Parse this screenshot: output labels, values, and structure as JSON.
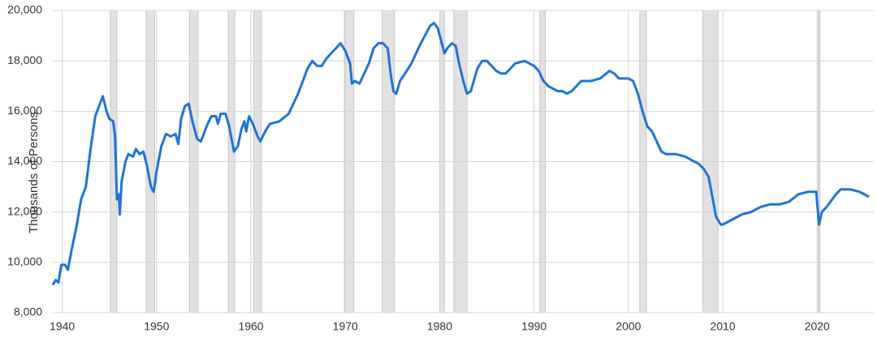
{
  "chart_data": {
    "type": "line",
    "y_label": "Thousands of Persons",
    "color": "#1f74d4",
    "recession_color": "#e1e1e1",
    "grid": true,
    "xlim": [
      1939,
      2026
    ],
    "ylim": [
      8000,
      20000
    ],
    "xticks": [
      1940,
      1950,
      1960,
      1970,
      1980,
      1990,
      2000,
      2010,
      2020
    ],
    "yticks": [
      {
        "value": 8000,
        "label": "8,000"
      },
      {
        "value": 10000,
        "label": "10,000"
      },
      {
        "value": 12000,
        "label": "12,000"
      },
      {
        "value": 14000,
        "label": "14,000"
      },
      {
        "value": 16000,
        "label": "16,000"
      },
      {
        "value": 18000,
        "label": "18,000"
      },
      {
        "value": 20000,
        "label": "20,000"
      }
    ],
    "recessions": [
      [
        1945.1,
        1945.8
      ],
      [
        1948.9,
        1949.8
      ],
      [
        1953.5,
        1954.4
      ],
      [
        1957.6,
        1958.3
      ],
      [
        1960.3,
        1961.1
      ],
      [
        1969.9,
        1970.9
      ],
      [
        1973.9,
        1975.2
      ],
      [
        1980.0,
        1980.5
      ],
      [
        1981.5,
        1982.9
      ],
      [
        1990.6,
        1991.2
      ],
      [
        2001.2,
        2001.9
      ],
      [
        2007.9,
        2009.5
      ],
      [
        2020.1,
        2020.3
      ]
    ],
    "x": [
      1939.0,
      1939.3,
      1939.6,
      1939.9,
      1940.3,
      1940.6,
      1941.0,
      1941.5,
      1942.0,
      1942.5,
      1943.0,
      1943.5,
      1944.0,
      1944.3,
      1944.7,
      1945.0,
      1945.4,
      1945.6,
      1945.8,
      1946.0,
      1946.1,
      1946.3,
      1946.7,
      1947.0,
      1947.5,
      1947.8,
      1948.2,
      1948.6,
      1949.0,
      1949.4,
      1949.7,
      1950.0,
      1950.5,
      1951.0,
      1951.5,
      1952.0,
      1952.3,
      1952.6,
      1953.0,
      1953.4,
      1953.8,
      1954.3,
      1954.7,
      1955.3,
      1955.8,
      1956.3,
      1956.5,
      1956.8,
      1957.3,
      1957.7,
      1958.2,
      1958.6,
      1959.0,
      1959.3,
      1959.5,
      1959.8,
      1960.2,
      1960.7,
      1961.0,
      1961.5,
      1962.0,
      1963.0,
      1964.0,
      1965.0,
      1966.0,
      1966.5,
      1967.0,
      1967.5,
      1968.0,
      1969.0,
      1969.5,
      1970.0,
      1970.5,
      1970.7,
      1971.0,
      1971.5,
      1972.0,
      1972.5,
      1973.0,
      1973.5,
      1974.0,
      1974.5,
      1974.8,
      1975.1,
      1975.4,
      1975.8,
      1976.5,
      1977.0,
      1978.0,
      1979.0,
      1979.4,
      1979.8,
      1980.3,
      1980.5,
      1980.8,
      1981.3,
      1981.7,
      1982.0,
      1982.5,
      1982.9,
      1983.3,
      1984.0,
      1984.5,
      1985.0,
      1985.5,
      1986.0,
      1986.5,
      1987.0,
      1987.5,
      1988.0,
      1989.0,
      1989.5,
      1990.0,
      1990.5,
      1991.0,
      1991.5,
      1992.0,
      1992.5,
      1993.0,
      1993.5,
      1994.0,
      1995.0,
      1996.0,
      1997.0,
      1998.0,
      1998.5,
      1999.0,
      2000.0,
      2000.5,
      2001.0,
      2001.5,
      2002.0,
      2002.5,
      2003.0,
      2003.5,
      2004.0,
      2005.0,
      2006.0,
      2007.0,
      2007.5,
      2008.0,
      2008.5,
      2009.0,
      2009.3,
      2009.8,
      2010.0,
      2011.0,
      2012.0,
      2013.0,
      2014.0,
      2015.0,
      2016.0,
      2017.0,
      2018.0,
      2019.0,
      2019.9,
      2020.2,
      2020.5,
      2021.0,
      2022.0,
      2022.5,
      2023.5,
      2024.5,
      2025.5
    ],
    "values": [
      9100,
      9300,
      9200,
      9900,
      9900,
      9700,
      10500,
      11400,
      12500,
      13000,
      14500,
      15800,
      16300,
      16600,
      16000,
      15700,
      15600,
      15000,
      12500,
      12700,
      11900,
      13200,
      14000,
      14300,
      14200,
      14500,
      14300,
      14400,
      13800,
      13000,
      12800,
      13600,
      14600,
      15100,
      15000,
      15100,
      14700,
      15700,
      16200,
      16300,
      15600,
      14900,
      14800,
      15400,
      15800,
      15800,
      15500,
      15900,
      15900,
      15400,
      14400,
      14600,
      15300,
      15600,
      15200,
      15800,
      15500,
      15000,
      14800,
      15200,
      15500,
      15600,
      15900,
      16700,
      17700,
      18000,
      17800,
      17800,
      18100,
      18500,
      18700,
      18400,
      17900,
      17100,
      17200,
      17100,
      17500,
      17900,
      18500,
      18700,
      18700,
      18500,
      17500,
      16800,
      16700,
      17200,
      17600,
      17900,
      18700,
      19400,
      19500,
      19300,
      18600,
      18300,
      18500,
      18700,
      18600,
      18000,
      17200,
      16700,
      16800,
      17700,
      18000,
      18000,
      17800,
      17600,
      17500,
      17500,
      17700,
      17900,
      18000,
      17900,
      17800,
      17600,
      17200,
      17000,
      16900,
      16800,
      16800,
      16700,
      16800,
      17200,
      17200,
      17300,
      17600,
      17500,
      17300,
      17300,
      17200,
      16700,
      16000,
      15400,
      15200,
      14800,
      14400,
      14300,
      14300,
      14200,
      14000,
      13900,
      13700,
      13400,
      12400,
      11800,
      11500,
      11500,
      11700,
      11900,
      12000,
      12200,
      12300,
      12300,
      12400,
      12700,
      12800,
      12800,
      11500,
      12000,
      12200,
      12700,
      12900,
      12900,
      12800,
      12600
    ]
  }
}
